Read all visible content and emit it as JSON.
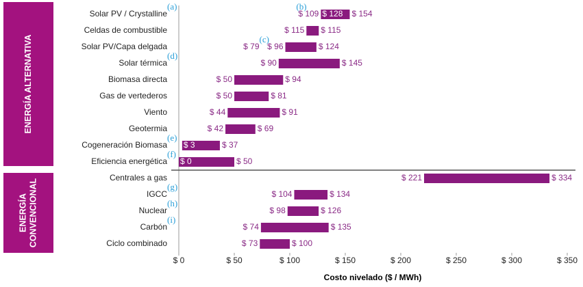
{
  "chart_data": {
    "type": "range-bar",
    "x_label": "Costo nivelado ($ / MWh)",
    "groups": [
      {
        "lines": [
          "ENERGÍA ALTERNATIVA"
        ]
      },
      {
        "lines": [
          "ENERGÍA",
          "CONVENCIONAL"
        ]
      }
    ],
    "categories": [
      "Solar PV / Crystalline",
      "Celdas de combustible",
      "Solar PV/Capa delgada",
      "Solar térmica",
      "Biomasa directa",
      "Gas de vertederos",
      "Viento",
      "Geotermia",
      "Cogeneración Biomasa",
      "Eficiencia energética",
      "Centrales a gas",
      "IGCC",
      "Nuclear",
      "Carbón",
      "Ciclo combinado"
    ],
    "annotations": [
      "(a)",
      null,
      null,
      "(d)",
      null,
      null,
      null,
      null,
      "(e)",
      "(f)",
      null,
      "(g)",
      "(h)",
      "(i)",
      null
    ],
    "bar_annotations": [
      "(b)",
      null,
      "(c)",
      null,
      null,
      null,
      null,
      null,
      null,
      null,
      null,
      null,
      null,
      null,
      null
    ],
    "color": "#8a1a7e",
    "low": [
      128,
      115,
      96,
      90,
      50,
      50,
      44,
      42,
      3,
      0,
      221,
      104,
      98,
      74,
      73
    ],
    "low_labels": [
      "$ 128",
      "$ 115",
      "$ 96",
      "$ 90",
      "$ 50",
      "$ 50",
      "$ 44",
      "$ 42",
      "$ 3",
      "$ 0",
      "$ 221",
      "$ 104",
      "$ 98",
      "$ 74",
      "$ 73"
    ],
    "high": [
      154,
      115,
      124,
      145,
      94,
      81,
      91,
      69,
      37,
      50,
      334,
      134,
      126,
      135,
      100
    ],
    "high_labels": [
      "$ 154",
      "$ 115",
      "$ 124",
      "$ 145",
      "$ 94",
      "$ 81",
      "$ 91",
      "$ 69",
      "$ 37",
      "$ 50",
      "$ 334",
      "$ 134",
      "$ 126",
      "$ 135",
      "$ 100"
    ],
    "extra": [
      109,
      null,
      79,
      null,
      null,
      null,
      null,
      null,
      null,
      null,
      null,
      null,
      null,
      null,
      null
    ],
    "extra_labels": [
      "$ 109",
      null,
      "$ 79",
      null,
      null,
      null,
      null,
      null,
      null,
      null,
      null,
      null,
      null,
      null,
      null
    ],
    "xlim": [
      0,
      350
    ],
    "xticks": [
      {
        "value": 0,
        "label": "$ 0"
      },
      {
        "value": 50,
        "label": "$ 50"
      },
      {
        "value": 100,
        "label": "$ 100"
      },
      {
        "value": 150,
        "label": "$ 150"
      },
      {
        "value": 200,
        "label": "$ 200"
      },
      {
        "value": 250,
        "label": "$ 250"
      },
      {
        "value": 300,
        "label": "$ 300"
      },
      {
        "value": 350,
        "label": "$ 350"
      }
    ]
  }
}
